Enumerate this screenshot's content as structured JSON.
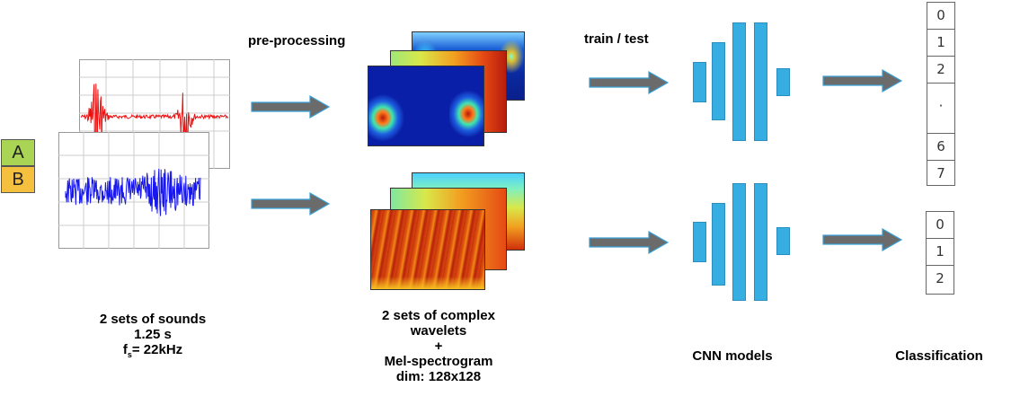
{
  "classes": {
    "a": "A",
    "b": "B",
    "a_color": "#a9d454",
    "b_color": "#f5c03e"
  },
  "steps": {
    "preprocessing": "pre-processing",
    "train_test": "train / test"
  },
  "captions": {
    "sounds_line1": "2 sets of sounds",
    "sounds_line2": "1.25 s",
    "sounds_fs_f": "f",
    "sounds_fs_sub": "s",
    "sounds_fs_val": "= 22kHz",
    "wavelet_line1": "2 sets of complex",
    "wavelet_line2": "wavelets",
    "wavelet_line3": "+",
    "wavelet_line4": "Mel-spectrogram",
    "wavelet_line5": "dim: 128x128",
    "cnn": "CNN models",
    "classification": "Classification"
  },
  "outputs_top": [
    "0",
    "1",
    "2",
    "·",
    "6",
    "7"
  ],
  "outputs_bottom": [
    "0",
    "1",
    "2"
  ],
  "colors": {
    "arrow": "#6b6b6b",
    "arrow_edge": "#3aa0d5",
    "cnn_bar": "#36aee2",
    "wave_red": "#ee1111",
    "wave_blue": "#1818ee"
  }
}
